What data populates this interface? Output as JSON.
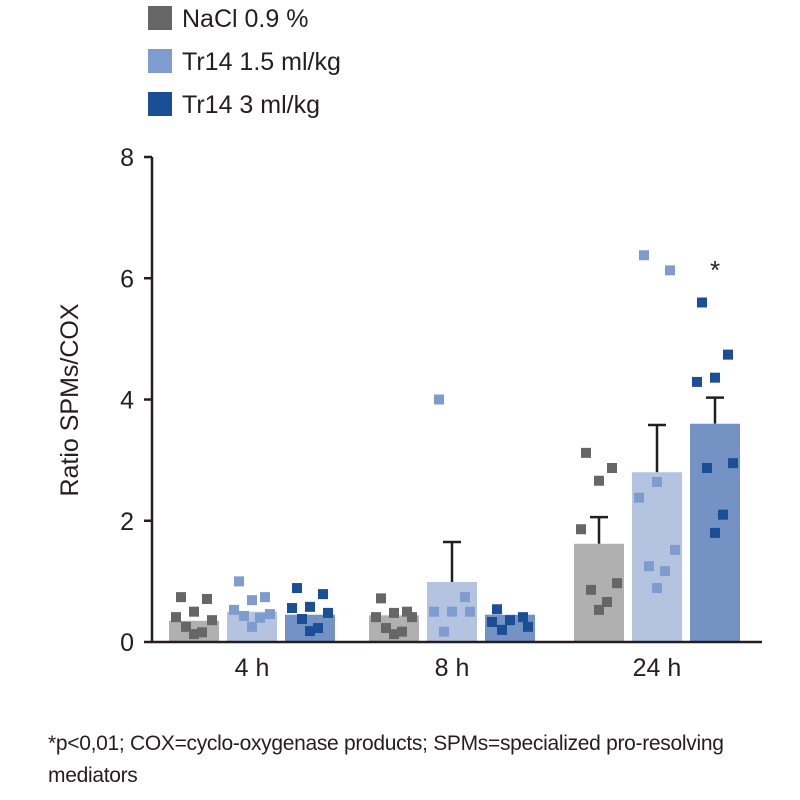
{
  "chart_data": {
    "type": "bar",
    "title": "",
    "xlabel": "",
    "ylabel": "Ratio SPMs/COX",
    "ylim": [
      0,
      8
    ],
    "yticks": [
      "0",
      "2",
      "4",
      "6",
      "8"
    ],
    "categories": [
      "4 h",
      "8 h",
      "24 h"
    ],
    "legend_position": "top-left",
    "grid": false,
    "series": [
      {
        "name": "NaCl 0.9 %",
        "bar_color": "#b0b0b0",
        "point_color": "#666666",
        "values": [
          0.35,
          0.44,
          1.62
        ],
        "error_upper": [
          null,
          null,
          2.06
        ],
        "points": [
          [
            0.74,
            0.71,
            0.5,
            0.41,
            0.36,
            0.25,
            0.16,
            0.13
          ],
          [
            0.72,
            0.5,
            0.48,
            0.41,
            0.41,
            0.23,
            0.17,
            0.13
          ],
          [
            3.12,
            2.87,
            2.66,
            1.86,
            0.97,
            0.86,
            0.66,
            0.53
          ]
        ]
      },
      {
        "name": "Tr14 1.5 ml/kg",
        "bar_color": "#b4c3e0",
        "point_color": "#7f9cce",
        "values": [
          0.5,
          0.99,
          2.8
        ],
        "error_upper": [
          null,
          1.65,
          3.58
        ],
        "points": [
          [
            1.0,
            0.74,
            0.69,
            0.53,
            0.46,
            0.43,
            0.4,
            0.25
          ],
          [
            4.0,
            0.74,
            0.5,
            0.5,
            0.5,
            0.17
          ],
          [
            6.38,
            6.13,
            2.64,
            2.38,
            1.52,
            1.25,
            1.17,
            0.89
          ]
        ]
      },
      {
        "name": "Tr14 3 ml/kg",
        "bar_color": "#7592c4",
        "point_color": "#1a4f96",
        "values": [
          0.45,
          0.45,
          3.6
        ],
        "error_upper": [
          null,
          null,
          4.03
        ],
        "points": [
          [
            0.89,
            0.79,
            0.58,
            0.56,
            0.48,
            0.38,
            0.23,
            0.18
          ],
          [
            0.54,
            0.41,
            0.36,
            0.33,
            0.25,
            0.2
          ],
          [
            5.6,
            4.74,
            4.36,
            4.29,
            2.95,
            2.87,
            2.1,
            1.8
          ]
        ]
      }
    ],
    "annotations": [
      {
        "category": "24 h",
        "series": "Tr14 3 ml/kg",
        "text": "*"
      }
    ]
  },
  "footnote": "*p<0,01; COX=cyclo-oxygenase products; SPMs=specialized pro-resolving mediators"
}
